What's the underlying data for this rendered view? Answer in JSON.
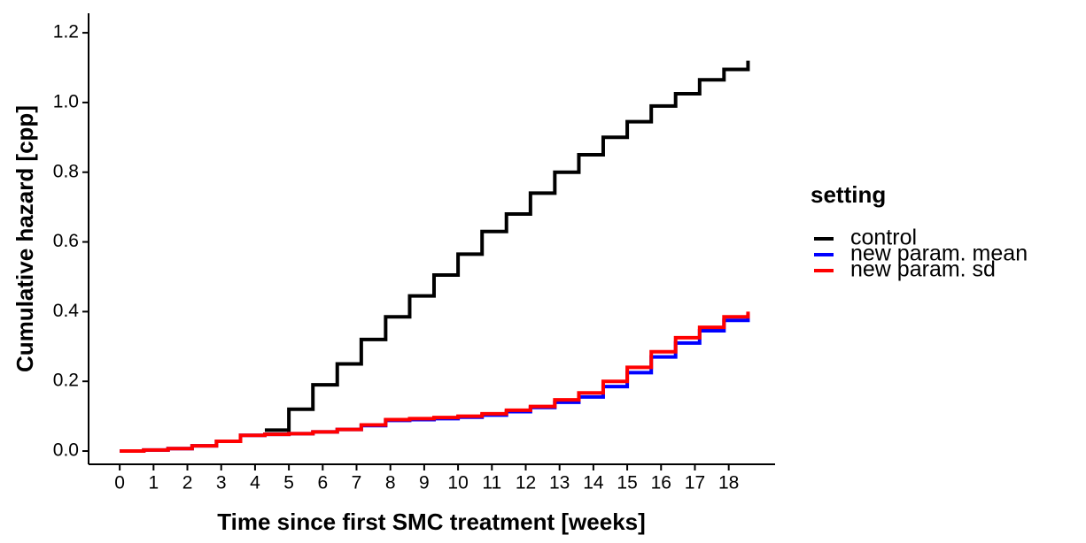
{
  "chart_data": {
    "type": "step",
    "x_label": "Time since first SMC treatment [weeks]",
    "y_label": "Cumulative hazard [cpp]",
    "legend_title": "setting",
    "legend_position": "right",
    "xlim": [
      -0.92,
      19.37
    ],
    "ylim": [
      -0.038,
      1.256
    ],
    "xticks": [
      0,
      1,
      2,
      3,
      4,
      5,
      6,
      7,
      8,
      9,
      10,
      11,
      12,
      13,
      14,
      15,
      16,
      17,
      18
    ],
    "yticks": [
      {
        "value": 0,
        "label": "0.0"
      },
      {
        "value": 0.2,
        "label": "0.2"
      },
      {
        "value": 0.4,
        "label": "0.4"
      },
      {
        "value": 0.6,
        "label": "0.6"
      },
      {
        "value": 0.8,
        "label": "0.8"
      },
      {
        "value": 1,
        "label": "1.0"
      },
      {
        "value": 1.2,
        "label": "1.2"
      }
    ],
    "series": [
      {
        "name": "control",
        "color": "#000000",
        "x": [
          4.29,
          5,
          5.71,
          6.43,
          7.14,
          7.86,
          8.57,
          9.29,
          10,
          10.71,
          11.43,
          12.14,
          12.86,
          13.57,
          14.29,
          15,
          15.71,
          16.43,
          17.14,
          17.86,
          18.57
        ],
        "values": [
          0.06,
          0.12,
          0.19,
          0.25,
          0.32,
          0.385,
          0.445,
          0.505,
          0.565,
          0.63,
          0.68,
          0.74,
          0.8,
          0.85,
          0.9,
          0.945,
          0.99,
          1.025,
          1.065,
          1.095,
          1.12
        ]
      },
      {
        "name": "new param. mean",
        "color": "#0000ff",
        "x": [
          0,
          0.71,
          1.43,
          2.14,
          2.86,
          3.57,
          4.29,
          5,
          5.71,
          6.43,
          7.14,
          7.86,
          8.57,
          9.29,
          10,
          10.71,
          11.43,
          12.14,
          12.86,
          13.57,
          14.29,
          15,
          15.71,
          16.43,
          17.14,
          17.86,
          18.57
        ],
        "values": [
          0,
          0.003,
          0.007,
          0.015,
          0.028,
          0.045,
          0.048,
          0.05,
          0.055,
          0.062,
          0.073,
          0.088,
          0.09,
          0.093,
          0.097,
          0.103,
          0.113,
          0.125,
          0.14,
          0.155,
          0.185,
          0.225,
          0.27,
          0.31,
          0.345,
          0.375,
          0.395
        ]
      },
      {
        "name": "new param. sd",
        "color": "#ff0000",
        "x": [
          0,
          0.71,
          1.43,
          2.14,
          2.86,
          3.57,
          4.29,
          5,
          5.71,
          6.43,
          7.14,
          7.86,
          8.57,
          9.29,
          10,
          10.71,
          11.43,
          12.14,
          12.86,
          13.57,
          14.29,
          15,
          15.71,
          16.43,
          17.14,
          17.86,
          18.57
        ],
        "values": [
          0,
          0.003,
          0.007,
          0.015,
          0.028,
          0.045,
          0.048,
          0.05,
          0.055,
          0.062,
          0.075,
          0.09,
          0.093,
          0.096,
          0.1,
          0.107,
          0.117,
          0.128,
          0.147,
          0.167,
          0.2,
          0.24,
          0.285,
          0.325,
          0.355,
          0.385,
          0.4
        ]
      }
    ]
  }
}
